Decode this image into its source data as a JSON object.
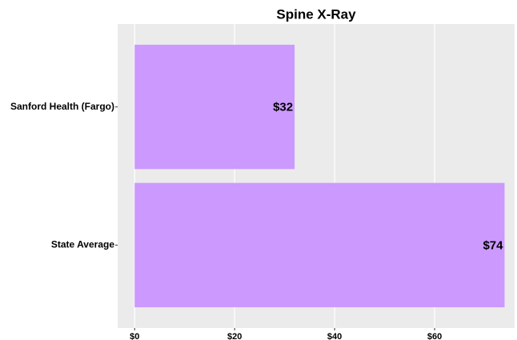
{
  "chart_data": {
    "type": "barh",
    "title": "Spine X-Ray",
    "categories": [
      "Sanford Health (Fargo)",
      "State Average"
    ],
    "values": [
      32,
      74
    ],
    "value_labels": [
      "$32",
      "$74"
    ],
    "color": "#cc99ff",
    "xlim": [
      -3.4,
      76
    ],
    "xticks": [
      {
        "value": 0,
        "label": "$0"
      },
      {
        "value": 20,
        "label": "$20"
      },
      {
        "value": 40,
        "label": "$40"
      },
      {
        "value": 60,
        "label": "$60"
      }
    ],
    "grid": true
  }
}
